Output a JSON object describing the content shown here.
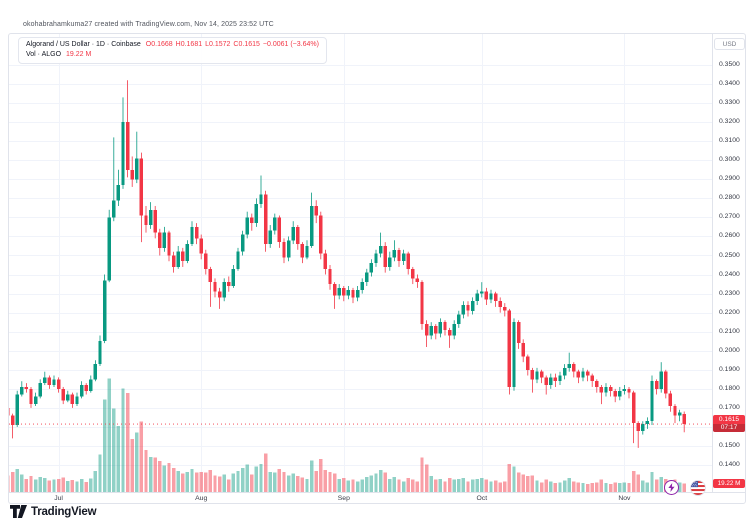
{
  "attribution": "okohabrahamkuma27 created with TradingView.com, Nov 14, 2025 23:52 UTC",
  "logo_text": "TradingView",
  "legend": {
    "symbol_line": "Algorand / US Dollar · 1D · Coinbase",
    "open": "O0.1668",
    "high": "H0.1681",
    "low": "L0.1572",
    "close": "C0.1615",
    "change": "−0.0061 (−3.64%)",
    "volume_label": "Vol · ALGO",
    "volume_value": "19.22 M"
  },
  "price_axis": {
    "currency_button": "USD",
    "last_price": "0.1615",
    "countdown": "07:17",
    "volume_tag": "19.22 M"
  },
  "colors": {
    "up": "#089981",
    "down": "#f23645",
    "vol_up": "rgba(8,153,129,0.45)",
    "vol_down": "rgba(242,54,69,0.48)",
    "grid": "#f0f3fa",
    "axis_text": "#363a45",
    "label_bg": "#f23645"
  },
  "chart_data": {
    "type": "candlestick",
    "title": "Algorand / US Dollar, 1D, Coinbase",
    "symbol": "ALGO/USD",
    "interval": "1D",
    "exchange": "Coinbase",
    "start_date": "2025-06-20",
    "end_date": "2025-11-14",
    "ylim": [
      0.14,
      0.35
    ],
    "price_step": 0.01,
    "last_price": 0.1615,
    "volume_units": "millions of ALGO",
    "price_ticks": [
      "0.3500",
      "0.3400",
      "0.3300",
      "0.3200",
      "0.3100",
      "0.3000",
      "0.2900",
      "0.2800",
      "0.2700",
      "0.2600",
      "0.2500",
      "0.2400",
      "0.2300",
      "0.2200",
      "0.2100",
      "0.2000",
      "0.1900",
      "0.1800",
      "0.1700",
      "0.1600",
      "0.1500",
      "0.1400"
    ],
    "month_labels": [
      "Jul",
      "Aug",
      "Sep",
      "Oct",
      "Nov"
    ],
    "month_tick_indexes": [
      11,
      42,
      73,
      103,
      134
    ],
    "candles_format": [
      "open",
      "high",
      "low",
      "close",
      "volume_m"
    ],
    "candles": [
      [
        0.17,
        0.172,
        0.164,
        0.166,
        38
      ],
      [
        0.166,
        0.167,
        0.154,
        0.161,
        45
      ],
      [
        0.161,
        0.179,
        0.16,
        0.177,
        52
      ],
      [
        0.177,
        0.184,
        0.176,
        0.181,
        40
      ],
      [
        0.181,
        0.183,
        0.178,
        0.18,
        30
      ],
      [
        0.18,
        0.181,
        0.17,
        0.172,
        36
      ],
      [
        0.172,
        0.178,
        0.171,
        0.176,
        28
      ],
      [
        0.176,
        0.185,
        0.175,
        0.183,
        34
      ],
      [
        0.183,
        0.189,
        0.182,
        0.186,
        32
      ],
      [
        0.186,
        0.187,
        0.18,
        0.182,
        26
      ],
      [
        0.182,
        0.187,
        0.181,
        0.185,
        28
      ],
      [
        0.185,
        0.186,
        0.178,
        0.18,
        30
      ],
      [
        0.18,
        0.181,
        0.172,
        0.174,
        33
      ],
      [
        0.174,
        0.179,
        0.173,
        0.177,
        25
      ],
      [
        0.177,
        0.178,
        0.17,
        0.172,
        27
      ],
      [
        0.172,
        0.178,
        0.171,
        0.176,
        24
      ],
      [
        0.176,
        0.184,
        0.175,
        0.182,
        29
      ],
      [
        0.182,
        0.183,
        0.177,
        0.179,
        23
      ],
      [
        0.179,
        0.187,
        0.178,
        0.185,
        31
      ],
      [
        0.185,
        0.195,
        0.184,
        0.193,
        48
      ],
      [
        0.193,
        0.208,
        0.192,
        0.205,
        85
      ],
      [
        0.205,
        0.24,
        0.204,
        0.237,
        210
      ],
      [
        0.237,
        0.274,
        0.236,
        0.27,
        258
      ],
      [
        0.27,
        0.312,
        0.268,
        0.279,
        190
      ],
      [
        0.279,
        0.295,
        0.276,
        0.287,
        150
      ],
      [
        0.287,
        0.333,
        0.285,
        0.32,
        235
      ],
      [
        0.32,
        0.342,
        0.291,
        0.295,
        225
      ],
      [
        0.295,
        0.302,
        0.286,
        0.29,
        120
      ],
      [
        0.29,
        0.315,
        0.288,
        0.301,
        135
      ],
      [
        0.301,
        0.304,
        0.257,
        0.271,
        160
      ],
      [
        0.271,
        0.276,
        0.262,
        0.266,
        95
      ],
      [
        0.266,
        0.278,
        0.264,
        0.274,
        80
      ],
      [
        0.274,
        0.276,
        0.259,
        0.262,
        78
      ],
      [
        0.262,
        0.264,
        0.25,
        0.254,
        70
      ],
      [
        0.254,
        0.265,
        0.252,
        0.262,
        60
      ],
      [
        0.262,
        0.263,
        0.247,
        0.25,
        66
      ],
      [
        0.25,
        0.252,
        0.241,
        0.244,
        55
      ],
      [
        0.244,
        0.255,
        0.243,
        0.252,
        48
      ],
      [
        0.252,
        0.254,
        0.244,
        0.247,
        42
      ],
      [
        0.247,
        0.258,
        0.246,
        0.256,
        45
      ],
      [
        0.256,
        0.268,
        0.255,
        0.265,
        52
      ],
      [
        0.265,
        0.267,
        0.256,
        0.259,
        44
      ],
      [
        0.259,
        0.261,
        0.248,
        0.251,
        46
      ],
      [
        0.251,
        0.253,
        0.24,
        0.243,
        44
      ],
      [
        0.243,
        0.244,
        0.223,
        0.236,
        50
      ],
      [
        0.236,
        0.238,
        0.228,
        0.231,
        38
      ],
      [
        0.231,
        0.233,
        0.222,
        0.228,
        35
      ],
      [
        0.228,
        0.238,
        0.226,
        0.236,
        40
      ],
      [
        0.236,
        0.239,
        0.231,
        0.234,
        28
      ],
      [
        0.234,
        0.245,
        0.233,
        0.243,
        42
      ],
      [
        0.243,
        0.254,
        0.242,
        0.252,
        48
      ],
      [
        0.252,
        0.263,
        0.25,
        0.261,
        55
      ],
      [
        0.261,
        0.273,
        0.259,
        0.27,
        62
      ],
      [
        0.27,
        0.272,
        0.263,
        0.267,
        40
      ],
      [
        0.267,
        0.28,
        0.265,
        0.277,
        58
      ],
      [
        0.277,
        0.292,
        0.275,
        0.282,
        64
      ],
      [
        0.282,
        0.284,
        0.252,
        0.256,
        88
      ],
      [
        0.256,
        0.266,
        0.254,
        0.263,
        46
      ],
      [
        0.263,
        0.272,
        0.261,
        0.27,
        44
      ],
      [
        0.27,
        0.271,
        0.254,
        0.257,
        52
      ],
      [
        0.257,
        0.259,
        0.246,
        0.249,
        45
      ],
      [
        0.249,
        0.26,
        0.247,
        0.258,
        38
      ],
      [
        0.258,
        0.268,
        0.256,
        0.265,
        42
      ],
      [
        0.265,
        0.266,
        0.253,
        0.256,
        36
      ],
      [
        0.256,
        0.257,
        0.246,
        0.249,
        33
      ],
      [
        0.249,
        0.258,
        0.248,
        0.255,
        30
      ],
      [
        0.255,
        0.283,
        0.254,
        0.276,
        72
      ],
      [
        0.276,
        0.279,
        0.267,
        0.271,
        48
      ],
      [
        0.271,
        0.273,
        0.248,
        0.251,
        75
      ],
      [
        0.251,
        0.253,
        0.24,
        0.243,
        50
      ],
      [
        0.243,
        0.245,
        0.232,
        0.235,
        46
      ],
      [
        0.235,
        0.236,
        0.222,
        0.229,
        42
      ],
      [
        0.229,
        0.235,
        0.227,
        0.233,
        30
      ],
      [
        0.233,
        0.234,
        0.226,
        0.229,
        32
      ],
      [
        0.229,
        0.234,
        0.227,
        0.232,
        26
      ],
      [
        0.232,
        0.233,
        0.225,
        0.228,
        28
      ],
      [
        0.228,
        0.234,
        0.226,
        0.232,
        24
      ],
      [
        0.232,
        0.238,
        0.23,
        0.236,
        28
      ],
      [
        0.236,
        0.243,
        0.234,
        0.241,
        34
      ],
      [
        0.241,
        0.248,
        0.239,
        0.246,
        38
      ],
      [
        0.246,
        0.253,
        0.244,
        0.251,
        42
      ],
      [
        0.251,
        0.262,
        0.249,
        0.255,
        50
      ],
      [
        0.255,
        0.257,
        0.241,
        0.244,
        44
      ],
      [
        0.244,
        0.252,
        0.242,
        0.249,
        30
      ],
      [
        0.249,
        0.258,
        0.247,
        0.253,
        34
      ],
      [
        0.253,
        0.254,
        0.244,
        0.247,
        28
      ],
      [
        0.247,
        0.253,
        0.245,
        0.251,
        24
      ],
      [
        0.251,
        0.252,
        0.24,
        0.243,
        32
      ],
      [
        0.243,
        0.244,
        0.235,
        0.238,
        28
      ],
      [
        0.238,
        0.24,
        0.233,
        0.236,
        24
      ],
      [
        0.236,
        0.237,
        0.211,
        0.214,
        78
      ],
      [
        0.214,
        0.216,
        0.202,
        0.208,
        62
      ],
      [
        0.208,
        0.215,
        0.206,
        0.213,
        36
      ],
      [
        0.213,
        0.214,
        0.206,
        0.209,
        28
      ],
      [
        0.209,
        0.217,
        0.207,
        0.215,
        30
      ],
      [
        0.215,
        0.216,
        0.208,
        0.211,
        24
      ],
      [
        0.211,
        0.212,
        0.2015,
        0.208,
        32
      ],
      [
        0.208,
        0.216,
        0.206,
        0.214,
        28
      ],
      [
        0.214,
        0.221,
        0.212,
        0.219,
        30
      ],
      [
        0.219,
        0.226,
        0.217,
        0.224,
        32
      ],
      [
        0.224,
        0.226,
        0.218,
        0.221,
        24
      ],
      [
        0.221,
        0.228,
        0.219,
        0.226,
        28
      ],
      [
        0.226,
        0.232,
        0.224,
        0.23,
        30
      ],
      [
        0.23,
        0.236,
        0.228,
        0.231,
        32
      ],
      [
        0.231,
        0.233,
        0.224,
        0.227,
        28
      ],
      [
        0.227,
        0.232,
        0.225,
        0.23,
        24
      ],
      [
        0.23,
        0.231,
        0.223,
        0.226,
        26
      ],
      [
        0.226,
        0.228,
        0.22,
        0.223,
        22
      ],
      [
        0.223,
        0.225,
        0.218,
        0.221,
        24
      ],
      [
        0.221,
        0.222,
        0.177,
        0.181,
        64
      ],
      [
        0.181,
        0.217,
        0.179,
        0.215,
        58
      ],
      [
        0.215,
        0.216,
        0.201,
        0.204,
        44
      ],
      [
        0.204,
        0.206,
        0.194,
        0.197,
        40
      ],
      [
        0.197,
        0.198,
        0.187,
        0.19,
        36
      ],
      [
        0.19,
        0.191,
        0.178,
        0.185,
        38
      ],
      [
        0.185,
        0.191,
        0.183,
        0.189,
        26
      ],
      [
        0.189,
        0.19,
        0.183,
        0.186,
        22
      ],
      [
        0.186,
        0.187,
        0.177,
        0.182,
        28
      ],
      [
        0.182,
        0.188,
        0.18,
        0.186,
        24
      ],
      [
        0.186,
        0.188,
        0.181,
        0.184,
        20
      ],
      [
        0.184,
        0.189,
        0.182,
        0.187,
        22
      ],
      [
        0.187,
        0.193,
        0.185,
        0.191,
        26
      ],
      [
        0.191,
        0.199,
        0.189,
        0.193,
        32
      ],
      [
        0.193,
        0.194,
        0.186,
        0.189,
        24
      ],
      [
        0.189,
        0.19,
        0.183,
        0.186,
        22
      ],
      [
        0.186,
        0.191,
        0.184,
        0.189,
        20
      ],
      [
        0.189,
        0.19,
        0.184,
        0.187,
        18
      ],
      [
        0.187,
        0.188,
        0.181,
        0.184,
        20
      ],
      [
        0.184,
        0.185,
        0.178,
        0.181,
        22
      ],
      [
        0.181,
        0.182,
        0.172,
        0.178,
        28
      ],
      [
        0.178,
        0.183,
        0.176,
        0.181,
        20
      ],
      [
        0.181,
        0.182,
        0.176,
        0.179,
        18
      ],
      [
        0.179,
        0.18,
        0.173,
        0.176,
        22
      ],
      [
        0.176,
        0.181,
        0.174,
        0.179,
        20
      ],
      [
        0.179,
        0.182,
        0.177,
        0.18,
        22
      ],
      [
        0.18,
        0.181,
        0.175,
        0.178,
        20
      ],
      [
        0.178,
        0.179,
        0.1515,
        0.162,
        48
      ],
      [
        0.162,
        0.163,
        0.149,
        0.158,
        40
      ],
      [
        0.158,
        0.163,
        0.156,
        0.1615,
        26
      ],
      [
        0.1615,
        0.165,
        0.159,
        0.163,
        22
      ],
      [
        0.163,
        0.187,
        0.161,
        0.184,
        46
      ],
      [
        0.184,
        0.185,
        0.177,
        0.18,
        28
      ],
      [
        0.18,
        0.194,
        0.178,
        0.189,
        34
      ],
      [
        0.189,
        0.19,
        0.175,
        0.1775,
        30
      ],
      [
        0.1775,
        0.179,
        0.168,
        0.171,
        26
      ],
      [
        0.171,
        0.172,
        0.162,
        0.166,
        28
      ],
      [
        0.166,
        0.169,
        0.163,
        0.1676,
        22
      ],
      [
        0.1668,
        0.1681,
        0.1572,
        0.1615,
        19.22
      ]
    ]
  }
}
